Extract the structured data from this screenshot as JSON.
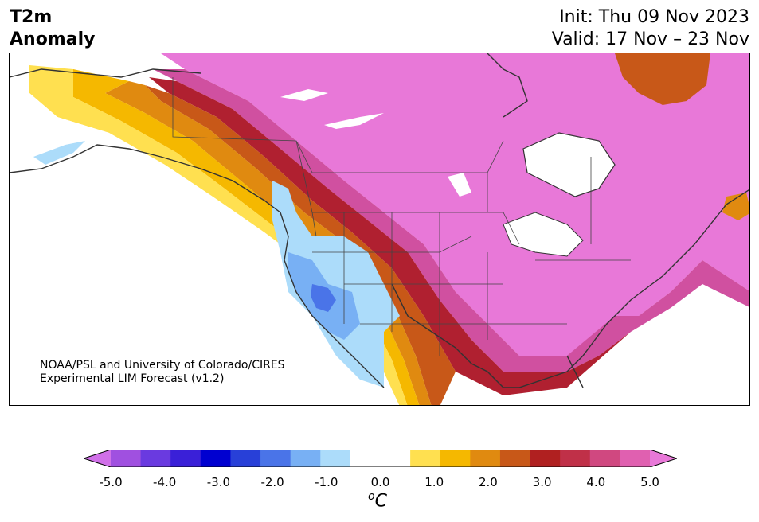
{
  "title": {
    "variable": "T2m",
    "subtitle": "Anomaly",
    "init": "Init: Thu 09 Nov 2023",
    "valid": "Valid: 17 Nov – 23 Nov"
  },
  "credit": {
    "line1": "NOAA/PSL and University of Colorado/CIRES",
    "line2": "Experimental LIM Forecast (v1.2)"
  },
  "colorbar": {
    "colors": [
      "#d070e8",
      "#a050e0",
      "#6a3ae0",
      "#3a20d8",
      "#0000d0",
      "#2840d8",
      "#4a74e8",
      "#78b0f4",
      "#acdcfa",
      "#ffffff",
      "#ffffff",
      "#ffe050",
      "#f5b800",
      "#e08a10",
      "#c85818",
      "#b02020",
      "#c03048",
      "#d04880",
      "#e060b0",
      "#e878d8"
    ],
    "ticks": [
      "-5.0",
      "-4.0",
      "-3.0",
      "-2.0",
      "-1.0",
      "0.0",
      "1.0",
      "2.0",
      "3.0",
      "4.0",
      "5.0"
    ],
    "unit_symbol": "o",
    "unit_letter": "C"
  },
  "colors": {
    "pink": "#e878d8",
    "magenta": "#d050a0",
    "crimson": "#b02030",
    "darkred": "#a01818",
    "rust": "#c85818",
    "orange": "#e08a10",
    "gold": "#f5b800",
    "yellow": "#ffe050",
    "lightblue": "#acdcfa",
    "skyblue": "#78b0f4",
    "blue": "#4a74e8",
    "coast": "#333333"
  }
}
